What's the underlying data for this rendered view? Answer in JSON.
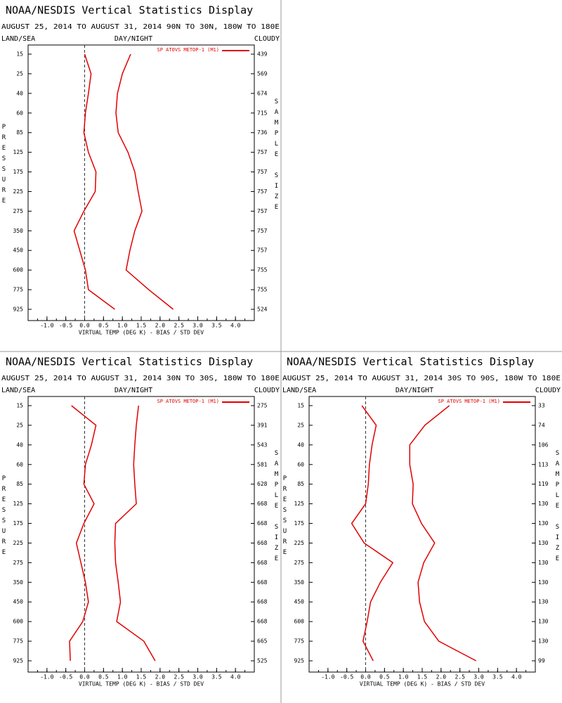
{
  "chart_data": [
    {
      "type": "line",
      "orientation": "horizontal",
      "title": "NOAA/NESDIS Vertical Statistics Display",
      "subtitle": "AUGUST 25, 2014 TO AUGUST 31, 2014  90N TO 30N, 180W TO 180E",
      "land_sea": "LAND/SEA",
      "day_night": "DAY/NIGHT",
      "cloudy": "CLOUDY",
      "legend": "SP ATOVS METOP-1 (M1)",
      "y_label": "PRESSURE",
      "y2_label": "SAMPLE  SIZE",
      "x_label": "VIRTUAL TEMP (DEG K) - BIAS / STD DEV",
      "categories": [
        15,
        25,
        40,
        60,
        85,
        125,
        175,
        225,
        275,
        350,
        450,
        600,
        775,
        925
      ],
      "sample_sizes": [
        439,
        569,
        674,
        715,
        736,
        757,
        757,
        757,
        757,
        757,
        757,
        755,
        755,
        524
      ],
      "series": [
        {
          "color": "#e00000",
          "values": [
            0.0,
            0.17,
            0.1,
            0.02,
            -0.02,
            0.1,
            0.3,
            0.28,
            -0.02,
            -0.28,
            -0.13,
            0.02,
            0.1,
            0.8
          ]
        },
        {
          "color": "#e00000",
          "values": [
            1.22,
            1.0,
            0.87,
            0.83,
            0.89,
            1.15,
            1.33,
            1.42,
            1.52,
            1.33,
            1.2,
            1.1,
            1.7,
            2.35
          ]
        }
      ],
      "xlim": [
        -1.5,
        4.5
      ],
      "xticks": [
        {
          "value": -1,
          "label": "-1.0"
        },
        {
          "value": -0.5,
          "label": "-0.5"
        },
        {
          "value": 0,
          "label": "0.0"
        },
        {
          "value": 0.5,
          "label": "0.5"
        },
        {
          "value": 1,
          "label": "1.0"
        },
        {
          "value": 1.5,
          "label": "1.5"
        },
        {
          "value": 2,
          "label": "2.0"
        },
        {
          "value": 2.5,
          "label": "2.5"
        },
        {
          "value": 3,
          "label": "3.0"
        },
        {
          "value": 3.5,
          "label": "3.5"
        },
        {
          "value": 4,
          "label": "4.0"
        }
      ]
    },
    {
      "type": "line",
      "orientation": "horizontal",
      "title": "NOAA/NESDIS Vertical Statistics Display",
      "subtitle": "AUGUST 25, 2014 TO AUGUST 31, 2014  30N TO 30S, 180W TO 180E",
      "land_sea": "LAND/SEA",
      "day_night": "DAY/NIGHT",
      "cloudy": "CLOUDY",
      "legend": "SP ATOVS METOP-1 (M1)",
      "y_label": "PRESSURE",
      "y2_label": "SAMPLE  SIZE",
      "x_label": "VIRTUAL TEMP (DEG K) - BIAS / STD DEV",
      "categories": [
        15,
        25,
        40,
        60,
        85,
        125,
        175,
        225,
        275,
        350,
        450,
        600,
        775,
        925
      ],
      "sample_sizes": [
        275,
        391,
        543,
        581,
        628,
        668,
        668,
        668,
        668,
        668,
        668,
        668,
        665,
        525
      ],
      "series": [
        {
          "color": "#e00000",
          "values": [
            -0.35,
            0.3,
            0.18,
            0.02,
            -0.02,
            0.25,
            -0.02,
            -0.22,
            -0.1,
            0.02,
            0.1,
            -0.05,
            -0.4,
            -0.38
          ]
        },
        {
          "color": "#e00000",
          "values": [
            1.43,
            1.37,
            1.33,
            1.3,
            1.33,
            1.37,
            0.82,
            0.8,
            0.82,
            0.89,
            0.95,
            0.85,
            1.57,
            1.87
          ]
        }
      ],
      "xlim": [
        -1.5,
        4.5
      ],
      "xticks": [
        {
          "value": -1,
          "label": "-1.0"
        },
        {
          "value": -0.5,
          "label": "-0.5"
        },
        {
          "value": 0,
          "label": "0.0"
        },
        {
          "value": 0.5,
          "label": "0.5"
        },
        {
          "value": 1,
          "label": "1.0"
        },
        {
          "value": 1.5,
          "label": "1.5"
        },
        {
          "value": 2,
          "label": "2.0"
        },
        {
          "value": 2.5,
          "label": "2.5"
        },
        {
          "value": 3,
          "label": "3.0"
        },
        {
          "value": 3.5,
          "label": "3.5"
        },
        {
          "value": 4,
          "label": "4.0"
        }
      ]
    },
    {
      "type": "line",
      "orientation": "horizontal",
      "title": "NOAA/NESDIS Vertical Statistics Display",
      "subtitle": "AUGUST 25, 2014 TO AUGUST 31, 2014  30S TO 90S, 180W TO 180E",
      "land_sea": "LAND/SEA",
      "day_night": "DAY/NIGHT",
      "cloudy": "CLOUDY",
      "legend": "SP ATOVS METOP-1 (M1)",
      "y_label": "PRESSURE",
      "y2_label": "SAMPLE  SIZE",
      "x_label": "VIRTUAL TEMP (DEG K) - BIAS / STD DEV",
      "categories": [
        15,
        25,
        40,
        60,
        85,
        125,
        175,
        225,
        275,
        350,
        450,
        600,
        775,
        925
      ],
      "sample_sizes": [
        33,
        74,
        106,
        113,
        119,
        130,
        130,
        130,
        130,
        130,
        130,
        130,
        130,
        99
      ],
      "series": [
        {
          "color": "#e00000",
          "values": [
            -0.1,
            0.28,
            0.17,
            0.1,
            0.07,
            0.0,
            -0.37,
            -0.04,
            0.72,
            0.39,
            0.13,
            0.04,
            -0.07,
            0.2
          ]
        },
        {
          "color": "#e00000",
          "values": [
            2.22,
            1.57,
            1.17,
            1.17,
            1.26,
            1.24,
            1.48,
            1.83,
            1.54,
            1.39,
            1.43,
            1.56,
            1.94,
            2.93
          ]
        }
      ],
      "xlim": [
        -1.5,
        4.5
      ],
      "xticks": [
        {
          "value": -1,
          "label": "-1.0"
        },
        {
          "value": -0.5,
          "label": "-0.5"
        },
        {
          "value": 0,
          "label": "0.0"
        },
        {
          "value": 0.5,
          "label": "0.5"
        },
        {
          "value": 1,
          "label": "1.0"
        },
        {
          "value": 1.5,
          "label": "1.5"
        },
        {
          "value": 2,
          "label": "2.0"
        },
        {
          "value": 2.5,
          "label": "2.5"
        },
        {
          "value": 3,
          "label": "3.0"
        },
        {
          "value": 3.5,
          "label": "3.5"
        },
        {
          "value": 4,
          "label": "4.0"
        }
      ]
    }
  ]
}
